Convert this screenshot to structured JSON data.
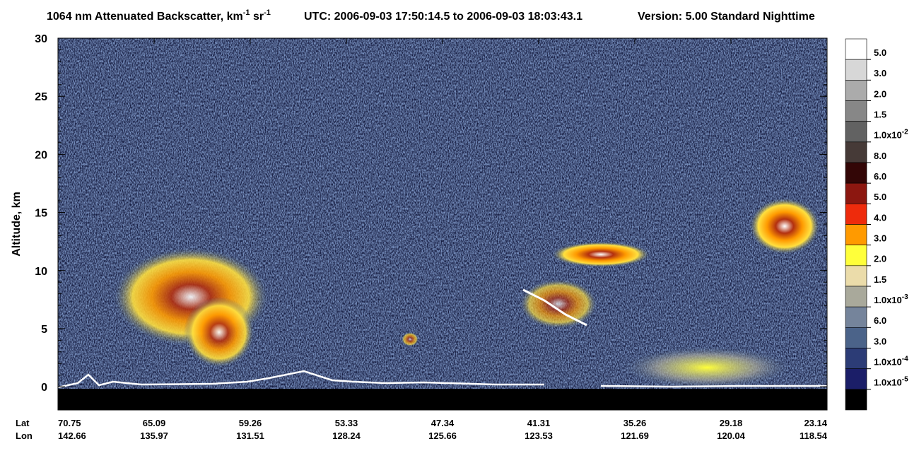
{
  "chart_data": {
    "type": "curtain",
    "title": [
      {
        "text": "1064 nm Attenuated Backscatter, km"
      },
      {
        "text": "-1",
        "sup": true
      },
      {
        "text": " sr"
      },
      {
        "text": "-1",
        "sup": true
      }
    ],
    "utc": "UTC:  2006-09-03 17:50:14.5  to  2006-09-03 18:03:43.1",
    "version": "Version: 5.00  Standard  Nighttime",
    "ylabel": "Altitude, km",
    "ylim": [
      -2,
      30
    ],
    "yticks": [
      0,
      5,
      10,
      15,
      20,
      25,
      30
    ],
    "x_rows": [
      {
        "name": "Lat",
        "labels": [
          "70.75",
          "65.09",
          "59.26",
          "53.33",
          "47.34",
          "41.31",
          "35.26",
          "29.18",
          "23.14"
        ]
      },
      {
        "name": "Lon",
        "labels": [
          "142.66",
          "135.97",
          "131.51",
          "128.24",
          "125.66",
          "123.53",
          "121.69",
          "120.04",
          "118.54"
        ]
      }
    ],
    "colorbar": [
      {
        "color": "#ffffff",
        "label": "5.0"
      },
      {
        "color": "#d7d7d7",
        "label": "3.0"
      },
      {
        "color": "#ababab",
        "label": "2.0"
      },
      {
        "color": "#878787",
        "label": "1.5"
      },
      {
        "color": "#626262",
        "label": "1.0x10",
        "exp": "-2"
      },
      {
        "color": "#463a37",
        "label": "8.0"
      },
      {
        "color": "#330606",
        "label": "6.0"
      },
      {
        "color": "#8c1710",
        "label": "5.0"
      },
      {
        "color": "#ee2b0c",
        "label": "4.0"
      },
      {
        "color": "#ff9a00",
        "label": "3.0"
      },
      {
        "color": "#ffff3a",
        "label": "2.0"
      },
      {
        "color": "#ebdcaa",
        "label": "1.5"
      },
      {
        "color": "#a9a99b",
        "label": "1.0x10",
        "exp": "-3"
      },
      {
        "color": "#75849b",
        "label": "6.0"
      },
      {
        "color": "#4b6389",
        "label": "3.0"
      },
      {
        "color": "#2c3c76",
        "label": "1.0x10",
        "exp": "-4"
      },
      {
        "color": "#1b1e68",
        "label": "1.0x10",
        "exp": "-5"
      },
      {
        "color": "#000000",
        "label": null
      }
    ]
  }
}
